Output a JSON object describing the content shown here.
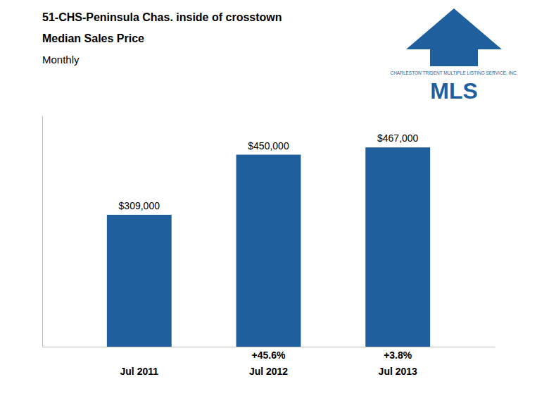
{
  "chart_data": {
    "type": "bar",
    "title": [
      "51-CHS-Peninsula Chas. inside of crosstown",
      "Median Sales Price"
    ],
    "subtitle": "Monthly",
    "categories": [
      "Jul 2011",
      "Jul 2012",
      "Jul 2013"
    ],
    "values": [
      309000,
      450000,
      467000
    ],
    "value_labels": [
      "$309,000",
      "$450,000",
      "$467,000"
    ],
    "data_labels": true,
    "color": "#1F5F9E",
    "ylim": [
      0,
      540000
    ],
    "tick_labels": "x",
    "grid": false,
    "annotations": [
      {
        "text": "+45.6%",
        "category": "Jul 2012"
      },
      {
        "text": "+3.8%",
        "category": "Jul 2013"
      },
      {
        "text": "CHARLESTON TRIDENT MULTIPLE LISTING SERVICE, INC."
      },
      {
        "text": "MLS"
      }
    ]
  }
}
